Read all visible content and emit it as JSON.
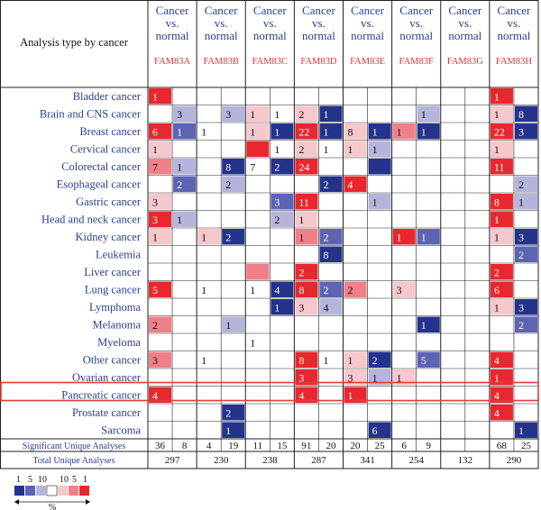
{
  "chart_data": {
    "type": "heatmap",
    "title": "",
    "corner_label": "Analysis type by cancer",
    "genes": [
      "FAM83A",
      "FAM83B",
      "FAM83C",
      "FAM83D",
      "FAM83E",
      "FAM83F",
      "FAM83G",
      "FAM83H"
    ],
    "group_header": [
      "Cancer",
      "vs.",
      "normal"
    ],
    "cancers": [
      "Bladder cancer",
      "Brain and CNS cancer",
      "Breast cancer",
      "Cervical cancer",
      "Colorectal cancer",
      "Esophageal cancer",
      "Gastric cancer",
      "Head and neck cancer",
      "Kidney cancer",
      "Leukemia",
      "Liver cancer",
      "Lung cancer",
      "Lymphoma",
      "Melanoma",
      "Myeloma",
      "Other cancer",
      "Ovarian cancer",
      "Pancreatic cancer",
      "Prostate cancer",
      "Sarcoma"
    ],
    "highlighted_row": "Pancreatic cancer",
    "colors": {
      "up_1": "#e8282e",
      "up_5": "#f08088",
      "up_10": "#f6c8cc",
      "down_10": "#b4b4dc",
      "down_5": "#5d64b4",
      "down_1": "#24338c",
      "header_text": "#2b3f8f",
      "gene_text": "#e03434",
      "highlight_box": "#e23c3c",
      "grid": "#222222"
    },
    "cells": [
      [
        [
          [
            1,
            "up_1"
          ],
          null
        ],
        [
          null,
          null
        ],
        [
          null,
          null
        ],
        [
          null,
          null
        ],
        [
          null,
          null
        ],
        [
          null,
          null
        ],
        [
          null,
          null
        ],
        [
          [
            1,
            "up_1"
          ],
          null
        ]
      ],
      [
        [
          null,
          [
            3,
            "down_10"
          ]
        ],
        [
          null,
          [
            3,
            "down_10"
          ]
        ],
        [
          [
            1,
            "up_10"
          ],
          [
            1,
            null
          ]
        ],
        [
          [
            2,
            "up_10"
          ],
          [
            1,
            "down_1"
          ]
        ],
        [
          null,
          null
        ],
        [
          null,
          [
            1,
            "down_10"
          ]
        ],
        [
          null,
          null
        ],
        [
          [
            1,
            "up_10"
          ],
          [
            8,
            "down_1"
          ]
        ]
      ],
      [
        [
          [
            6,
            "up_1"
          ],
          [
            1,
            "down_5"
          ]
        ],
        [
          [
            1,
            null
          ],
          null
        ],
        [
          [
            1,
            "up_10"
          ],
          [
            1,
            "down_1"
          ]
        ],
        [
          [
            22,
            "up_1"
          ],
          [
            1,
            "down_1"
          ]
        ],
        [
          [
            8,
            "up_10"
          ],
          [
            1,
            "down_1"
          ]
        ],
        [
          [
            1,
            "up_5"
          ],
          [
            1,
            "down_1"
          ]
        ],
        [
          null,
          null
        ],
        [
          [
            22,
            "up_1"
          ],
          [
            3,
            "down_1"
          ]
        ]
      ],
      [
        [
          [
            1,
            "up_10"
          ],
          null
        ],
        [
          null,
          null
        ],
        [
          [
            null,
            "up_1"
          ],
          [
            1,
            null
          ]
        ],
        [
          [
            2,
            "up_10"
          ],
          [
            1,
            null
          ]
        ],
        [
          [
            1,
            "up_10"
          ],
          [
            1,
            "down_10"
          ]
        ],
        [
          null,
          null
        ],
        [
          null,
          null
        ],
        [
          [
            1,
            "up_10"
          ],
          null
        ]
      ],
      [
        [
          [
            7,
            "up_5"
          ],
          [
            1,
            "down_10"
          ]
        ],
        [
          null,
          [
            8,
            "down_1"
          ]
        ],
        [
          [
            7,
            null
          ],
          [
            2,
            "down_1"
          ]
        ],
        [
          [
            24,
            "up_1"
          ],
          null
        ],
        [
          null,
          [
            null,
            "down_1"
          ]
        ],
        [
          null,
          null
        ],
        [
          null,
          null
        ],
        [
          [
            11,
            "up_1"
          ],
          null
        ]
      ],
      [
        [
          null,
          [
            2,
            "down_5"
          ]
        ],
        [
          null,
          [
            2,
            "down_10"
          ]
        ],
        [
          null,
          null
        ],
        [
          null,
          [
            2,
            "down_1"
          ]
        ],
        [
          [
            4,
            "up_1"
          ],
          null
        ],
        [
          null,
          null
        ],
        [
          null,
          null
        ],
        [
          null,
          [
            2,
            "down_10"
          ]
        ]
      ],
      [
        [
          [
            3,
            "up_10"
          ],
          null
        ],
        [
          null,
          null
        ],
        [
          null,
          [
            3,
            "down_5"
          ]
        ],
        [
          [
            11,
            "up_1"
          ],
          null
        ],
        [
          null,
          [
            1,
            "down_10"
          ]
        ],
        [
          null,
          null
        ],
        [
          null,
          null
        ],
        [
          [
            8,
            "up_1"
          ],
          [
            1,
            "down_10"
          ]
        ]
      ],
      [
        [
          [
            3,
            "up_1"
          ],
          [
            1,
            "down_10"
          ]
        ],
        [
          null,
          null
        ],
        [
          null,
          [
            2,
            "down_10"
          ]
        ],
        [
          [
            1,
            "up_10"
          ],
          null
        ],
        [
          null,
          null
        ],
        [
          null,
          null
        ],
        [
          null,
          null
        ],
        [
          [
            1,
            "up_1"
          ],
          null
        ]
      ],
      [
        [
          [
            1,
            "up_10"
          ],
          null
        ],
        [
          [
            1,
            "up_10"
          ],
          [
            2,
            "down_1"
          ]
        ],
        [
          null,
          null
        ],
        [
          [
            1,
            "up_5"
          ],
          [
            2,
            "down_5"
          ]
        ],
        [
          null,
          null
        ],
        [
          [
            1,
            "up_1"
          ],
          [
            1,
            "down_5"
          ]
        ],
        [
          null,
          null
        ],
        [
          [
            1,
            "up_10"
          ],
          [
            3,
            "down_1"
          ]
        ]
      ],
      [
        [
          null,
          null
        ],
        [
          null,
          null
        ],
        [
          null,
          null
        ],
        [
          null,
          [
            8,
            "down_1"
          ]
        ],
        [
          null,
          null
        ],
        [
          null,
          null
        ],
        [
          null,
          null
        ],
        [
          null,
          [
            2,
            "down_5"
          ]
        ]
      ],
      [
        [
          null,
          null
        ],
        [
          null,
          null
        ],
        [
          [
            null,
            "up_5"
          ],
          null
        ],
        [
          [
            2,
            "up_1"
          ],
          null
        ],
        [
          null,
          null
        ],
        [
          null,
          null
        ],
        [
          null,
          null
        ],
        [
          [
            2,
            "up_1"
          ],
          null
        ]
      ],
      [
        [
          [
            5,
            "up_1"
          ],
          null
        ],
        [
          [
            1,
            null
          ],
          null
        ],
        [
          [
            1,
            null
          ],
          [
            4,
            "down_1"
          ]
        ],
        [
          [
            8,
            "up_1"
          ],
          [
            2,
            "down_5"
          ]
        ],
        [
          [
            2,
            "up_5"
          ],
          null
        ],
        [
          [
            3,
            "up_10"
          ],
          null
        ],
        [
          null,
          null
        ],
        [
          [
            6,
            "up_1"
          ],
          null
        ]
      ],
      [
        [
          null,
          null
        ],
        [
          null,
          null
        ],
        [
          null,
          [
            1,
            "down_1"
          ]
        ],
        [
          [
            3,
            "up_10"
          ],
          [
            4,
            "down_10"
          ]
        ],
        [
          null,
          null
        ],
        [
          null,
          null
        ],
        [
          null,
          null
        ],
        [
          [
            1,
            "up_10"
          ],
          [
            3,
            "down_1"
          ]
        ]
      ],
      [
        [
          [
            2,
            "up_5"
          ],
          null
        ],
        [
          null,
          [
            1,
            "down_10"
          ]
        ],
        [
          null,
          null
        ],
        [
          null,
          null
        ],
        [
          null,
          null
        ],
        [
          null,
          [
            1,
            "down_1"
          ]
        ],
        [
          null,
          null
        ],
        [
          null,
          [
            2,
            "down_5"
          ]
        ]
      ],
      [
        [
          null,
          null
        ],
        [
          null,
          null
        ],
        [
          [
            1,
            null
          ],
          null
        ],
        [
          null,
          null
        ],
        [
          null,
          null
        ],
        [
          null,
          null
        ],
        [
          null,
          null
        ],
        [
          null,
          null
        ]
      ],
      [
        [
          [
            3,
            "up_5"
          ],
          null
        ],
        [
          [
            1,
            null
          ],
          null
        ],
        [
          null,
          null
        ],
        [
          [
            8,
            "up_1"
          ],
          [
            1,
            null
          ]
        ],
        [
          [
            1,
            "up_10"
          ],
          [
            2,
            "down_1"
          ]
        ],
        [
          null,
          [
            5,
            "down_5"
          ]
        ],
        [
          null,
          null
        ],
        [
          [
            4,
            "up_1"
          ],
          null
        ]
      ],
      [
        [
          null,
          null
        ],
        [
          null,
          null
        ],
        [
          null,
          null
        ],
        [
          [
            3,
            "up_1"
          ],
          null
        ],
        [
          [
            3,
            "up_10"
          ],
          [
            1,
            "down_10"
          ]
        ],
        [
          [
            1,
            "up_10"
          ],
          null
        ],
        [
          null,
          null
        ],
        [
          [
            1,
            "up_1"
          ],
          null
        ]
      ],
      [
        [
          [
            4,
            "up_1"
          ],
          null
        ],
        [
          null,
          null
        ],
        [
          null,
          null
        ],
        [
          [
            4,
            "up_1"
          ],
          null
        ],
        [
          [
            1,
            "up_1"
          ],
          null
        ],
        [
          null,
          null
        ],
        [
          null,
          null
        ],
        [
          [
            4,
            "up_1"
          ],
          null
        ]
      ],
      [
        [
          null,
          null
        ],
        [
          null,
          [
            2,
            "down_1"
          ]
        ],
        [
          null,
          null
        ],
        [
          null,
          null
        ],
        [
          null,
          null
        ],
        [
          null,
          null
        ],
        [
          null,
          null
        ],
        [
          [
            4,
            "up_1"
          ],
          null
        ]
      ],
      [
        [
          null,
          null
        ],
        [
          null,
          [
            1,
            "down_1"
          ]
        ],
        [
          null,
          null
        ],
        [
          null,
          null
        ],
        [
          null,
          [
            6,
            "down_1"
          ]
        ],
        [
          null,
          null
        ],
        [
          null,
          null
        ],
        [
          null,
          [
            1,
            "down_1"
          ]
        ]
      ]
    ],
    "significant_label": "Significant Unique Analyses",
    "significant": [
      [
        36,
        8
      ],
      [
        4,
        19
      ],
      [
        11,
        15
      ],
      [
        91,
        20
      ],
      [
        20,
        25
      ],
      [
        6,
        9
      ],
      [
        null,
        null
      ],
      [
        68,
        25
      ]
    ],
    "total_label": "Total Unique Analyses",
    "total": [
      297,
      230,
      238,
      287,
      341,
      254,
      132,
      290
    ],
    "legend": {
      "left_ticks": [
        "1",
        "5",
        "10"
      ],
      "right_ticks": [
        "10",
        "5",
        "1"
      ],
      "unit": "%"
    }
  }
}
